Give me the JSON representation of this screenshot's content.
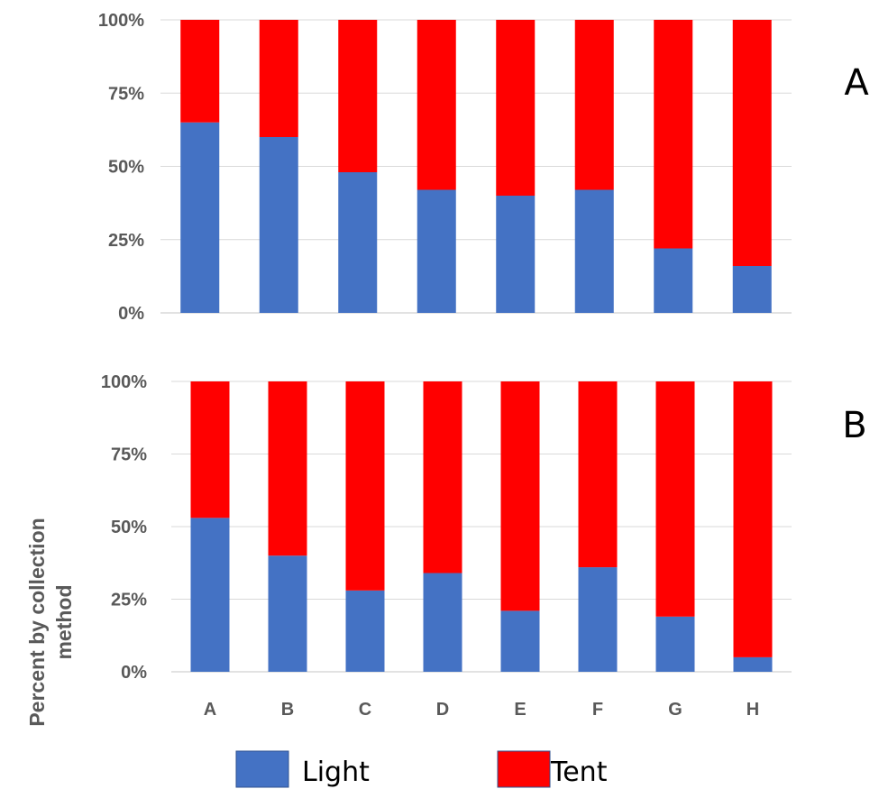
{
  "chart_data": [
    {
      "type": "bar",
      "stacked": true,
      "percent": true,
      "panel_label": "A",
      "categories": [
        "A",
        "B",
        "C",
        "D",
        "E",
        "F",
        "G",
        "H"
      ],
      "series": [
        {
          "name": "Light",
          "color": "#4472C4",
          "values": [
            65,
            60,
            48,
            42,
            40,
            42,
            22,
            16
          ]
        },
        {
          "name": "Tent",
          "color": "#FF0000",
          "values": [
            35,
            40,
            52,
            58,
            60,
            58,
            78,
            84
          ]
        }
      ],
      "y_ticks": [
        "0%",
        "25%",
        "50%",
        "75%",
        "100%"
      ],
      "ylim": [
        0,
        100
      ],
      "grid": true,
      "show_x_tick_labels": false
    },
    {
      "type": "bar",
      "stacked": true,
      "percent": true,
      "panel_label": "B",
      "categories": [
        "A",
        "B",
        "C",
        "D",
        "E",
        "F",
        "G",
        "H"
      ],
      "series": [
        {
          "name": "Light",
          "color": "#4472C4",
          "values": [
            53,
            40,
            28,
            34,
            21,
            36,
            19,
            5
          ]
        },
        {
          "name": "Tent",
          "color": "#FF0000",
          "values": [
            47,
            60,
            72,
            66,
            79,
            64,
            81,
            95
          ]
        }
      ],
      "y_ticks": [
        "0%",
        "25%",
        "50%",
        "75%",
        "100%"
      ],
      "ylim": [
        0,
        100
      ],
      "grid": true,
      "show_x_tick_labels": true
    }
  ],
  "ylabel": "Percent by collection method",
  "legend": {
    "placement": "bottom-center",
    "items": [
      {
        "label": "Light",
        "color": "#4472C4"
      },
      {
        "label": "Tent",
        "color": "#FF0000"
      }
    ]
  }
}
